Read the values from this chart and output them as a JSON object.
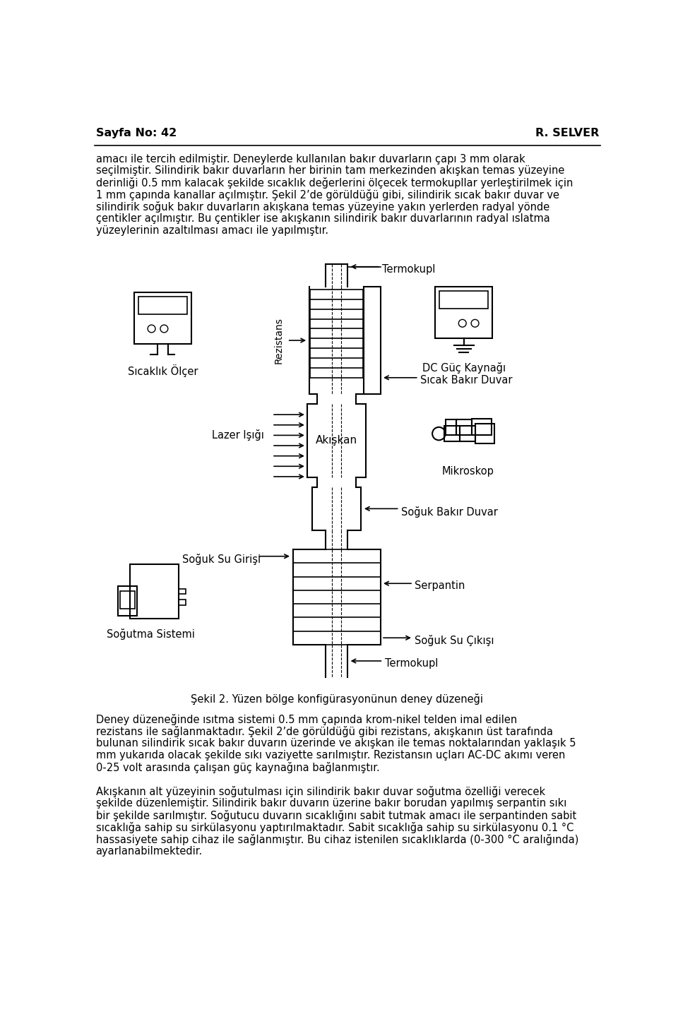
{
  "header_left": "Sayfa No: 42",
  "header_right": "R. SELVER",
  "para1": "amacı ile tercih edilmiştir. Deneylerde kullanılan bakır duvarların çapı 3 mm olarak",
  "para2": "seçilmiştir. Silindirik bakır duvarların her birinin tam merkezinden akışkan temas yüzeyine",
  "para3": "derinliği 0.5 mm kalacak şekilde sıcaklık değerlerini ölçecek termokupllar yerleştirilmek için",
  "para4": "1 mm çapında kanallar açılmıştır. Şekil 2’de görüldüğü gibi, silindirik sıcak bakır duvar ve",
  "para5": "silindirik soğuk bakır duvarların akışkana temas yüzeyine yakın yerlerden radyal yönde",
  "para6": "çentikler açılmıştır. Bu çentikler ise akışkanın silindirik bakır duvarlarının radyal ıslatma",
  "para7": "yüzeylerinin azaltılması amacı ile yapılmıştır.",
  "caption": "Şekil 2. Yüzen bölge konfigürasyonünun deney düzeneği",
  "para_bottom1": "Deney düzeneğinde ısıtma sistemi 0.5 mm çapında krom-nikel telden imal edilen",
  "para_bottom2": "rezistans ile sağlanmaktadır. Şekil 2’de görüldüğü gibi rezistans, akışkanın üst tarafında",
  "para_bottom3": "bulunan silindirik sıcak bakır duvarın üzerinde ve akışkan ile temas noktalarından yaklaşık 5",
  "para_bottom4": "mm yukarıda olacak şekilde sıkı vaziyette sarılmıştır. Rezistansın uçları AC-DC akımı veren",
  "para_bottom5": "0-25 volt arasında çalışan güç kaynağına bağlanmıştır.",
  "para_bottom6": "Akışkanın alt yüzeyinin soğutulması için silindirik bakır duvar soğutma özelliği verecek",
  "para_bottom7": "şekilde düzenlemiştir. Silindirik bakır duvarın üzerine bakır borudan yapılmış serpantin sıkı",
  "para_bottom8": "bir şekilde sarılmıştır. Soğutucu duvarın sıcaklığını sabit tutmak amacı ile serpantinden sabit",
  "para_bottom9": "sıcaklığa sahip su sirkülasyonu yaptırılmaktadır. Sabit sıcaklığa sahip su sirkülasyonu 0.1 °C",
  "para_bottom10": "hassasiyete sahip cihaz ile sağlanmıştır. Bu cihaz istenilen sıcaklıklarda (0-300 °C aralığında)",
  "para_bottom11": "ayarlanabilmektedir.",
  "label_termokupl_top": "Termokupl",
  "label_sicaklik": "Sıcaklık Ölçer",
  "label_rezistans": "Rezistans",
  "label_dc": "DC Güç Kaynağı",
  "label_lazer": "Lazer Işığı",
  "label_akiskan": "Akışkan",
  "label_sicak_bakir": "Sıcak Bakır Duvar",
  "label_mikroskop": "Mikroskop",
  "label_soguk_bakir": "Soğuk Bakır Duvar",
  "label_soguk_su_giris": "Soğuk Su Girişi",
  "label_serpantin": "Serpantin",
  "label_soguk_su_cikis": "Soğuk Su Çıkışı",
  "label_sogutma": "Soğutma Sistemi",
  "label_termokupl_bottom": "Termokupl",
  "bg_color": "#ffffff",
  "text_color": "#000000",
  "line_color": "#000000"
}
